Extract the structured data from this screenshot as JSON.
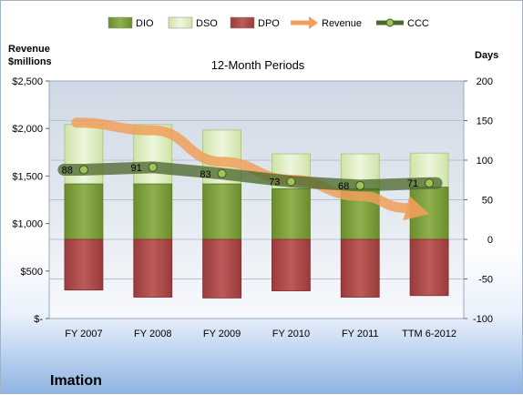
{
  "company": "Imation",
  "chart_data": {
    "type": "bar",
    "title": "12-Month Periods",
    "categories": [
      "FY 2007",
      "FY 2008",
      "FY 2009",
      "FY 2010",
      "FY 2011",
      "TTM 6-2012"
    ],
    "left_axis": {
      "title_line1": "Revenue",
      "title_line2": "$millions",
      "ylim": [
        0,
        2500
      ],
      "ticks": [
        0,
        500,
        1000,
        1500,
        2000,
        2500
      ],
      "tick_labels": [
        "$-",
        "$500",
        "$1,000",
        "$1,500",
        "$2,000",
        "$2,500"
      ]
    },
    "right_axis": {
      "title": "Days",
      "ylim": [
        -100,
        200
      ],
      "ticks": [
        -100,
        -50,
        0,
        50,
        100,
        150,
        200
      ],
      "tick_labels": [
        "-100",
        "-50",
        "0",
        "50",
        "100",
        "150",
        "200"
      ]
    },
    "series": [
      {
        "name": "DIO",
        "axis": "right",
        "kind": "stacked-bar",
        "values": [
          70,
          70,
          70,
          64,
          64,
          66
        ],
        "color": "#7a9b3a"
      },
      {
        "name": "DSO",
        "axis": "right",
        "kind": "stacked-bar",
        "values": [
          75,
          75,
          68,
          44,
          44,
          43
        ],
        "color": "#dfeec4"
      },
      {
        "name": "DPO",
        "axis": "right",
        "kind": "negative-bar",
        "values": [
          -64,
          -73,
          -74,
          -65,
          -73,
          -71
        ],
        "color": "#a84646"
      },
      {
        "name": "Revenue",
        "axis": "left",
        "kind": "arrow-line",
        "values": [
          2062,
          1981,
          1649,
          1461,
          1290,
          1100
        ],
        "color": "#f0a05a"
      },
      {
        "name": "CCC",
        "axis": "right",
        "kind": "line",
        "values": [
          88,
          91,
          83,
          73,
          68,
          71
        ],
        "labels": [
          "88",
          "91",
          "83",
          "73",
          "68",
          "71"
        ],
        "color": "#4d6a2e"
      }
    ],
    "grid": true,
    "legend_placement": "top"
  }
}
